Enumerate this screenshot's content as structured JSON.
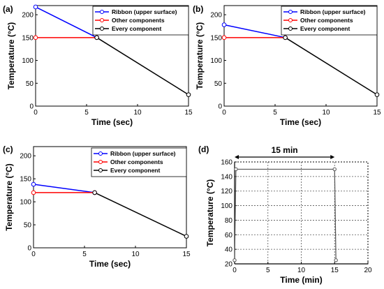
{
  "chart_data": [
    {
      "type": "line",
      "panel_label": "(a)",
      "xlabel": "Time (sec)",
      "ylabel": "Temperature (°C)",
      "xlim": [
        0,
        15
      ],
      "ylim": [
        0,
        220
      ],
      "xticks": [
        0,
        5,
        10,
        15
      ],
      "yticks": [
        0,
        50,
        100,
        150,
        200
      ],
      "grid": false,
      "legend_position": "top-right",
      "series": [
        {
          "name": "Ribbon (upper surface)",
          "color": "#0000ff",
          "x": [
            0,
            6
          ],
          "y": [
            217,
            150
          ]
        },
        {
          "name": "Other components",
          "color": "#ff0000",
          "x": [
            0,
            6
          ],
          "y": [
            150,
            150
          ]
        },
        {
          "name": "Every component",
          "color": "#000000",
          "x": [
            6,
            15
          ],
          "y": [
            150,
            25
          ]
        }
      ]
    },
    {
      "type": "line",
      "panel_label": "(b)",
      "xlabel": "Time (sec)",
      "ylabel": "Temperature (°C)",
      "xlim": [
        0,
        15
      ],
      "ylim": [
        0,
        220
      ],
      "xticks": [
        0,
        5,
        10,
        15
      ],
      "yticks": [
        0,
        50,
        100,
        150,
        200
      ],
      "grid": false,
      "legend_position": "top-right",
      "series": [
        {
          "name": "Ribbon (upper surface)",
          "color": "#0000ff",
          "x": [
            0,
            6
          ],
          "y": [
            178,
            150
          ]
        },
        {
          "name": "Other components",
          "color": "#ff0000",
          "x": [
            0,
            6
          ],
          "y": [
            150,
            150
          ]
        },
        {
          "name": "Every component",
          "color": "#000000",
          "x": [
            6,
            15
          ],
          "y": [
            150,
            25
          ]
        }
      ]
    },
    {
      "type": "line",
      "panel_label": "(c)",
      "xlabel": "Time (sec)",
      "ylabel": "Temperature (°C)",
      "xlim": [
        0,
        15
      ],
      "ylim": [
        0,
        220
      ],
      "xticks": [
        0,
        5,
        10,
        15
      ],
      "yticks": [
        0,
        50,
        100,
        150,
        200
      ],
      "grid": false,
      "legend_position": "top-right",
      "series": [
        {
          "name": "Ribbon (upper surface)",
          "color": "#0000ff",
          "x": [
            0,
            6
          ],
          "y": [
            138,
            120
          ]
        },
        {
          "name": "Other components",
          "color": "#ff0000",
          "x": [
            0,
            6
          ],
          "y": [
            120,
            120
          ]
        },
        {
          "name": "Every component",
          "color": "#000000",
          "x": [
            6,
            15
          ],
          "y": [
            120,
            25
          ]
        }
      ]
    },
    {
      "type": "line",
      "panel_label": "(d)",
      "xlabel": "Time (min)",
      "ylabel": "Temperature (°C)",
      "xlim": [
        0,
        20
      ],
      "ylim": [
        20,
        160
      ],
      "xticks": [
        0,
        5,
        10,
        15,
        20
      ],
      "yticks": [
        20,
        40,
        60,
        80,
        100,
        120,
        140,
        160
      ],
      "grid": true,
      "annotation": "15 min",
      "annotation_span": [
        0,
        15
      ],
      "series": [
        {
          "color": "#555555",
          "x": [
            0,
            0.2,
            15,
            15.2
          ],
          "y": [
            25,
            150,
            150,
            25
          ]
        }
      ]
    }
  ]
}
